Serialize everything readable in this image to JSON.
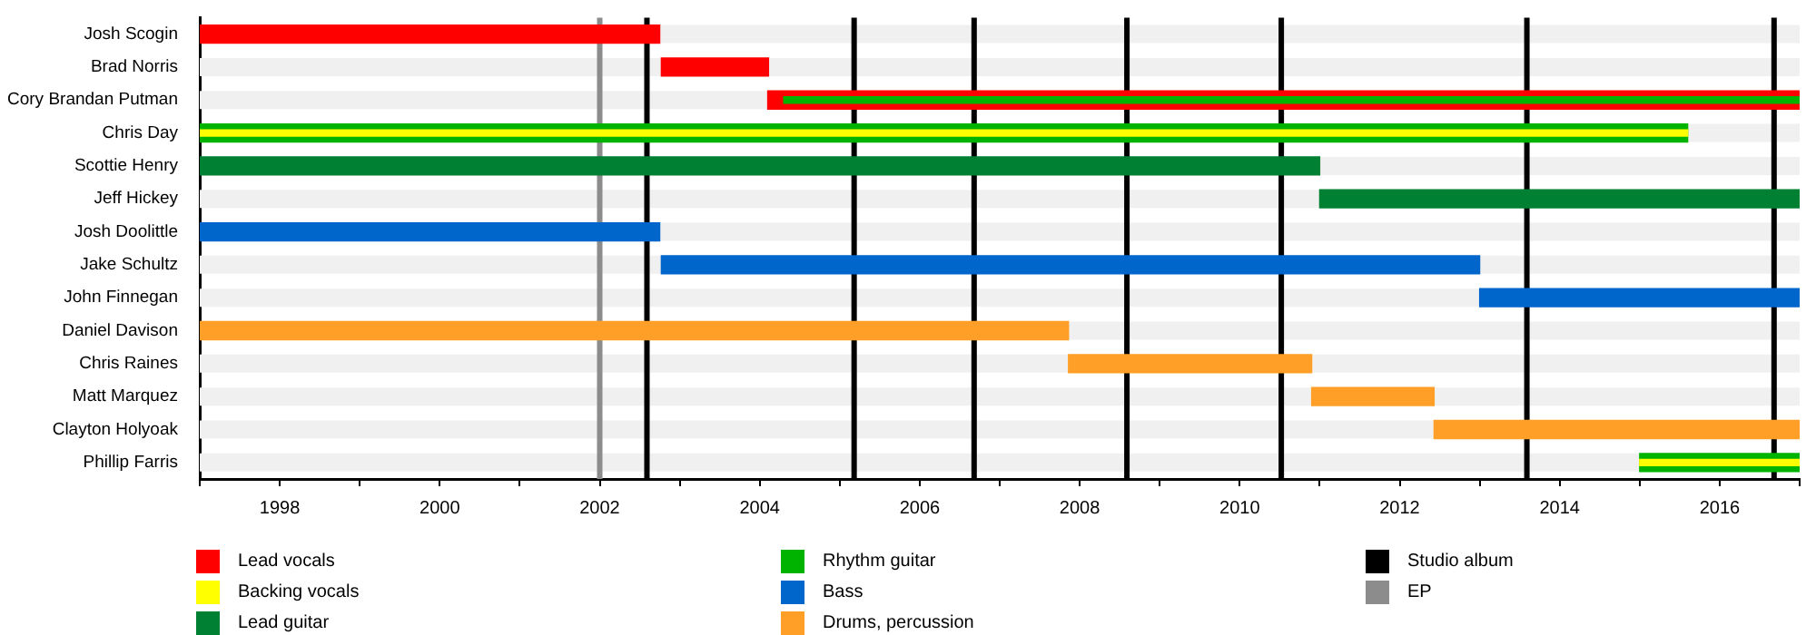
{
  "chart_data": {
    "type": "bar",
    "orientation": "horizontal",
    "legend": "bottom",
    "categories": [
      "Josh Scogin",
      "Brad Norris",
      "Cory Brandan Putman",
      "Chris Day",
      "Scottie Henry",
      "Jeff Hickey",
      "Josh Doolittle",
      "Jake Schultz",
      "John Finnegan",
      "Daniel Davison",
      "Chris Raines",
      "Matt Marquez",
      "Clayton Holyoak",
      "Phillip Farris"
    ],
    "xlim": [
      1997,
      2017
    ],
    "xticks": [
      {
        "value": 1997,
        "label": null
      },
      1998,
      {
        "value": 1999,
        "label": null
      },
      2000,
      {
        "value": 2001,
        "label": null
      },
      2002,
      {
        "value": 2003,
        "label": null
      },
      2004,
      {
        "value": 2005,
        "label": null
      },
      2006,
      {
        "value": 2007,
        "label": null
      },
      2008,
      {
        "value": 2009,
        "label": null
      },
      2010,
      {
        "value": 2011,
        "label": null
      },
      2012,
      {
        "value": 2013,
        "label": null
      },
      2014,
      {
        "value": 2015,
        "label": null
      },
      2016,
      {
        "value": 2017,
        "label": null
      }
    ],
    "series": [
      {
        "name": "Lead vocals",
        "color": "#ff0000",
        "values": [
          5.75,
          1.34,
          12.9,
          null,
          null,
          null,
          null,
          null,
          null,
          null,
          null,
          null,
          null,
          null
        ],
        "base": [
          1997,
          2002.77,
          2004.1,
          null,
          null,
          null,
          null,
          null,
          null,
          null,
          null,
          null,
          null,
          null
        ]
      },
      {
        "name": "Backing vocals",
        "color": "#ffff00",
        "values": [
          null,
          null,
          null,
          18.6,
          null,
          null,
          null,
          null,
          null,
          null,
          null,
          null,
          null,
          2
        ],
        "base": [
          null,
          null,
          null,
          1997,
          null,
          null,
          null,
          null,
          null,
          null,
          null,
          null,
          null,
          2015
        ]
      },
      {
        "name": "Lead guitar",
        "color": "#008033",
        "values": [
          null,
          null,
          null,
          null,
          14,
          6,
          null,
          null,
          null,
          null,
          null,
          null,
          null,
          null
        ],
        "base": [
          null,
          null,
          null,
          null,
          1997,
          2011,
          null,
          null,
          null,
          null,
          null,
          null,
          null,
          null
        ]
      },
      {
        "name": "Rhythm guitar",
        "color": "#00b300",
        "values": [
          null,
          null,
          12.7,
          18.6,
          null,
          null,
          null,
          null,
          null,
          null,
          null,
          null,
          null,
          2
        ],
        "base": [
          null,
          null,
          2004.3,
          1997,
          null,
          null,
          null,
          null,
          null,
          null,
          null,
          null,
          null,
          2015
        ]
      },
      {
        "name": "Bass",
        "color": "#0066cc",
        "values": [
          null,
          null,
          null,
          null,
          null,
          null,
          5.75,
          10.23,
          4,
          null,
          null,
          null,
          null,
          null
        ],
        "base": [
          null,
          null,
          null,
          null,
          null,
          null,
          1997,
          2002.77,
          2013,
          null,
          null,
          null,
          null,
          null
        ]
      },
      {
        "name": "Drums, percussion",
        "color": "#ff9f27",
        "values": [
          null,
          null,
          null,
          null,
          null,
          null,
          null,
          null,
          null,
          10.86,
          3.04,
          1.53,
          4.57,
          null
        ],
        "base": [
          null,
          null,
          null,
          null,
          null,
          null,
          null,
          null,
          null,
          1997,
          2007.86,
          2010.9,
          2012.43,
          null
        ]
      }
    ],
    "ref_lines": [
      {
        "axis": "x",
        "value": 2002.0,
        "label": "EP",
        "color": "#8c8c8c"
      },
      {
        "axis": "x",
        "value": 2002.59,
        "label": "Studio album",
        "color": "#000000"
      },
      {
        "axis": "x",
        "value": 2005.18,
        "color": "#000000"
      },
      {
        "axis": "x",
        "value": 2006.68,
        "color": "#000000"
      },
      {
        "axis": "x",
        "value": 2008.59,
        "color": "#000000"
      },
      {
        "axis": "x",
        "value": 2010.52,
        "color": "#000000"
      },
      {
        "axis": "x",
        "value": 2013.59,
        "color": "#000000"
      },
      {
        "axis": "x",
        "value": 2016.68,
        "color": "#000000"
      }
    ]
  }
}
